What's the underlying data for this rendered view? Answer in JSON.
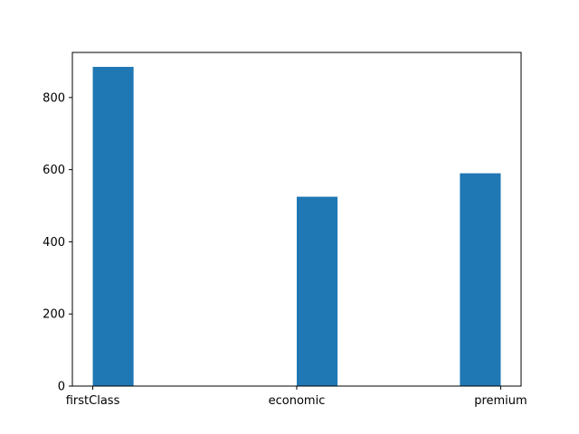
{
  "chart_data": {
    "type": "bar",
    "title": "",
    "xlabel": "",
    "ylabel": "",
    "categories": [
      "firstClass",
      "economic",
      "premium"
    ],
    "values": [
      885,
      525,
      590
    ],
    "ylim": [
      0,
      925
    ],
    "yticks": [
      0,
      200,
      400,
      600,
      800
    ],
    "grid": false,
    "legend": "none",
    "colors": {
      "bar": "#1f77b4",
      "axis": "#000000",
      "background": "#ffffff"
    }
  }
}
